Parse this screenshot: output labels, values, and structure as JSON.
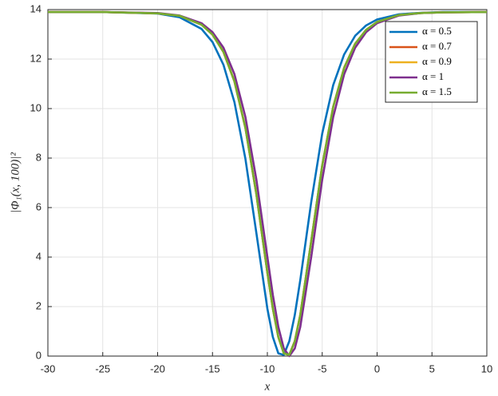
{
  "chart_data": {
    "type": "line",
    "x_label": "x",
    "y_label": "|Φ₁(x, 100)|²",
    "x": [
      -30,
      -25,
      -20,
      -18,
      -16,
      -15,
      -14,
      -13,
      -12,
      -11,
      -10,
      -9.5,
      -9,
      -8.5,
      -8,
      -7.5,
      -7,
      -6,
      -5,
      -4,
      -3,
      -2,
      -1,
      0,
      2,
      4,
      6,
      10
    ],
    "series": [
      {
        "name": "α = 0.5",
        "color": "#0072bd",
        "values": [
          13.9,
          13.9,
          13.84,
          13.69,
          13.22,
          12.69,
          11.77,
          10.26,
          7.97,
          4.97,
          1.92,
          0.77,
          0.11,
          0.05,
          0.6,
          1.66,
          3.07,
          6.23,
          8.99,
          10.95,
          12.19,
          12.94,
          13.36,
          13.6,
          13.81,
          13.87,
          13.9,
          13.9
        ]
      },
      {
        "name": "α = 0.7",
        "color": "#d95319",
        "values": [
          13.9,
          13.9,
          13.85,
          13.75,
          13.39,
          12.99,
          12.29,
          11.1,
          9.22,
          6.54,
          3.38,
          1.92,
          0.77,
          0.11,
          0.05,
          0.6,
          1.66,
          4.65,
          7.7,
          10.07,
          11.65,
          12.62,
          13.18,
          13.5,
          13.78,
          13.86,
          13.89,
          13.9
        ]
      },
      {
        "name": "α = 0.9",
        "color": "#edb120",
        "values": [
          13.9,
          13.9,
          13.85,
          13.75,
          13.39,
          12.99,
          12.29,
          11.1,
          9.22,
          6.54,
          3.38,
          1.92,
          0.77,
          0.11,
          0.05,
          0.6,
          1.66,
          4.65,
          7.7,
          10.07,
          11.65,
          12.62,
          13.18,
          13.5,
          13.78,
          13.86,
          13.89,
          13.9
        ]
      },
      {
        "name": "α = 1",
        "color": "#7e2f8e",
        "values": [
          13.9,
          13.9,
          13.86,
          13.76,
          13.45,
          13.09,
          12.46,
          11.39,
          9.66,
          7.13,
          4.01,
          2.47,
          1.18,
          0.31,
          0,
          0.31,
          1.18,
          4.01,
          7.13,
          9.66,
          11.39,
          12.46,
          13.09,
          13.45,
          13.76,
          13.86,
          13.89,
          13.9
        ]
      },
      {
        "name": "α = 1.5",
        "color": "#77ac30",
        "values": [
          13.9,
          13.9,
          13.85,
          13.75,
          13.39,
          12.99,
          12.29,
          11.1,
          9.22,
          6.54,
          3.38,
          1.92,
          0.77,
          0.11,
          0.05,
          0.6,
          1.66,
          4.65,
          7.7,
          10.07,
          11.65,
          12.62,
          13.18,
          13.5,
          13.78,
          13.86,
          13.89,
          13.9
        ]
      }
    ],
    "xlim": [
      -30,
      10
    ],
    "xticks": [
      -30,
      -25,
      -20,
      -15,
      -10,
      -5,
      0,
      5,
      10
    ],
    "ylim": [
      0,
      14
    ],
    "yticks": [
      0,
      2,
      4,
      6,
      8,
      10,
      12,
      14
    ],
    "grid": true,
    "legend": "top-right"
  }
}
